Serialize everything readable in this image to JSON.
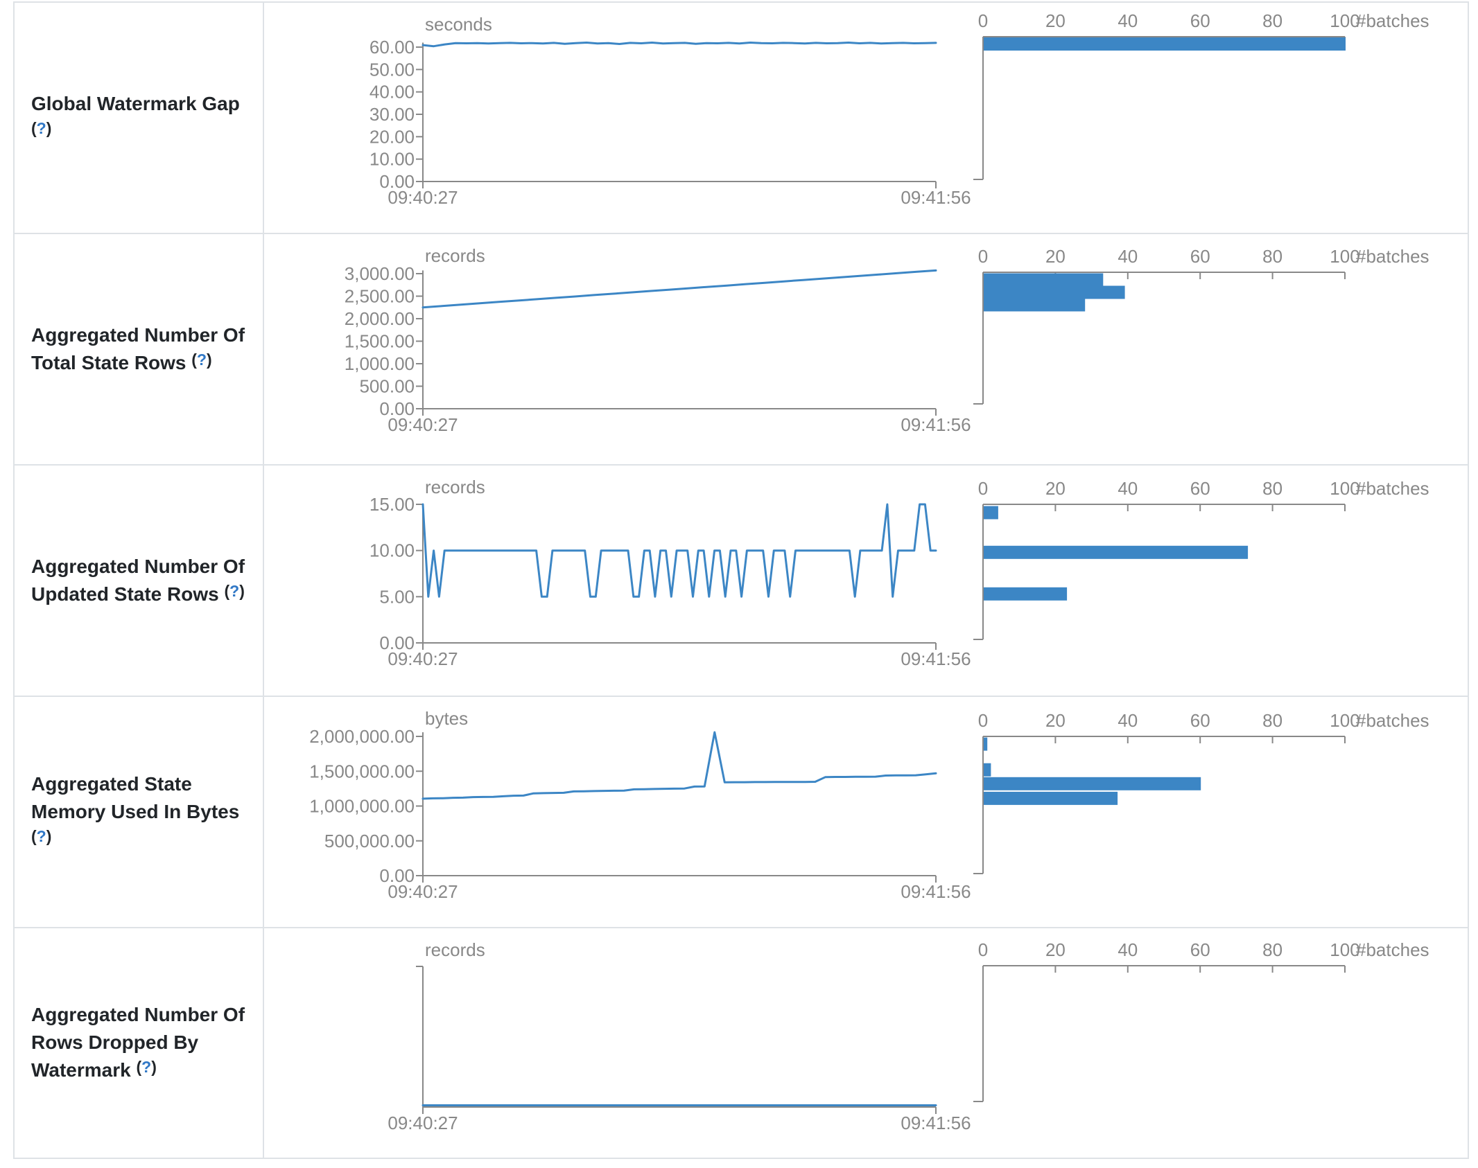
{
  "help": {
    "open": "(",
    "q": "?",
    "close": ")"
  },
  "time_axis": {
    "start": "09:40:27",
    "end": "09:41:56"
  },
  "histogram_axis": {
    "label": "#batches",
    "ticks": [
      [
        "0",
        0
      ],
      [
        "20",
        20
      ],
      [
        "40",
        40
      ],
      [
        "60",
        60
      ],
      [
        "80",
        80
      ],
      [
        "100",
        100
      ]
    ],
    "xlim": [
      0,
      100
    ]
  },
  "chart_data": [
    {
      "label": "Global Watermark Gap",
      "timeline": {
        "type": "line",
        "unit": "seconds",
        "xlabel_start": "09:40:27",
        "xlabel_end": "09:41:56",
        "ylim": [
          0,
          62
        ],
        "yticks": [
          [
            "60.00",
            60
          ],
          [
            "50.00",
            50
          ],
          [
            "40.00",
            40
          ],
          [
            "30.00",
            30
          ],
          [
            "20.00",
            20
          ],
          [
            "10.00",
            10
          ],
          [
            "0.00",
            0
          ]
        ],
        "values": [
          60.9,
          60.4,
          61.2,
          61.8,
          61.7,
          61.8,
          61.6,
          61.8,
          61.9,
          61.7,
          61.8,
          61.6,
          61.9,
          61.5,
          61.8,
          62.0,
          61.6,
          61.8,
          61.4,
          61.9,
          61.7,
          62.0,
          61.6,
          61.8,
          61.9,
          61.5,
          61.8,
          61.7,
          61.9,
          61.6,
          62.0,
          61.8,
          61.7,
          61.9,
          61.8,
          61.6,
          61.9,
          61.7,
          61.8,
          62.0,
          61.7,
          61.9,
          61.6,
          61.8,
          61.9,
          61.7,
          61.8,
          61.9
        ]
      },
      "histogram": {
        "type": "bar",
        "bars": [
          [
            61.4,
            100
          ]
        ]
      }
    },
    {
      "label": "Aggregated Number Of Total State Rows",
      "timeline": {
        "type": "line",
        "unit": "records",
        "xlabel_start": "09:40:27",
        "xlabel_end": "09:41:56",
        "ylim": [
          0,
          3100
        ],
        "yticks": [
          [
            "3,000.00",
            3000
          ],
          [
            "2,500.00",
            2500
          ],
          [
            "2,000.00",
            2000
          ],
          [
            "1,500.00",
            1500
          ],
          [
            "1,000.00",
            1000
          ],
          [
            "500.00",
            500
          ],
          [
            "0.00",
            0
          ]
        ],
        "values": [
          2250,
          2280,
          2311,
          2341,
          2372,
          2402,
          2432,
          2463,
          2493,
          2524,
          2554,
          2584,
          2615,
          2645,
          2676,
          2706,
          2736,
          2767,
          2797,
          2828,
          2858,
          2888,
          2919,
          2949,
          2980,
          3010,
          3041,
          3071
        ]
      },
      "histogram": {
        "type": "bar",
        "bars": [
          [
            2862,
            33
          ],
          [
            2585,
            39
          ],
          [
            2308,
            28
          ]
        ]
      }
    },
    {
      "label": "Aggregated Number Of Updated State Rows",
      "timeline": {
        "type": "line",
        "unit": "records",
        "xlabel_start": "09:40:27",
        "xlabel_end": "09:41:56",
        "ylim": [
          0,
          15
        ],
        "yticks": [
          [
            "15.00",
            15
          ],
          [
            "10.00",
            10
          ],
          [
            "5.00",
            5
          ],
          [
            "0.00",
            0
          ]
        ],
        "values": [
          15,
          5,
          10,
          5,
          10,
          10,
          10,
          10,
          10,
          10,
          10,
          10,
          10,
          10,
          10,
          10,
          10,
          10,
          10,
          10,
          10,
          10,
          5,
          5,
          10,
          10,
          10,
          10,
          10,
          10,
          10,
          5,
          5,
          10,
          10,
          10,
          10,
          10,
          10,
          5,
          5,
          10,
          10,
          5,
          10,
          10,
          5,
          10,
          10,
          10,
          5,
          10,
          10,
          5,
          10,
          10,
          5,
          10,
          10,
          5,
          10,
          10,
          10,
          10,
          5,
          10,
          10,
          10,
          5,
          10,
          10,
          10,
          10,
          10,
          10,
          10,
          10,
          10,
          10,
          10,
          5,
          10,
          10,
          10,
          10,
          10,
          15,
          5,
          10,
          10,
          10,
          10,
          15,
          15,
          10,
          10
        ]
      },
      "histogram": {
        "type": "bar",
        "bars": [
          [
            14.1,
            4
          ],
          [
            9.8,
            73
          ],
          [
            5.3,
            23
          ]
        ]
      }
    },
    {
      "label": "Aggregated State Memory Used In Bytes",
      "timeline": {
        "type": "line",
        "unit": "bytes",
        "xlabel_start": "09:40:27",
        "xlabel_end": "09:41:56",
        "ylim": [
          0,
          2100000
        ],
        "yticks": [
          [
            "2,000,000.00",
            2000000
          ],
          [
            "1,500,000.00",
            1500000
          ],
          [
            "1,000,000.00",
            1000000
          ],
          [
            "500,000.00",
            500000
          ],
          [
            "0.00",
            0
          ]
        ],
        "values": [
          1105000,
          1110000,
          1112000,
          1118000,
          1120000,
          1128000,
          1130000,
          1132000,
          1140000,
          1148000,
          1150000,
          1182000,
          1185000,
          1188000,
          1190000,
          1210000,
          1212000,
          1215000,
          1218000,
          1220000,
          1222000,
          1240000,
          1242000,
          1245000,
          1248000,
          1250000,
          1252000,
          1280000,
          1282000,
          2060000,
          1340000,
          1342000,
          1342000,
          1344000,
          1344000,
          1345000,
          1345000,
          1346000,
          1346000,
          1348000,
          1415000,
          1418000,
          1418000,
          1420000,
          1420000,
          1422000,
          1438000,
          1440000,
          1440000,
          1442000,
          1455000,
          1470000
        ]
      },
      "histogram": {
        "type": "bar",
        "bars": [
          [
            1890000,
            1
          ],
          [
            1520000,
            2
          ],
          [
            1320000,
            60
          ],
          [
            1110000,
            37
          ]
        ]
      }
    },
    {
      "label": "Aggregated Number Of Rows Dropped By Watermark",
      "timeline": {
        "type": "line",
        "unit": "records",
        "xlabel_start": "09:40:27",
        "xlabel_end": "09:41:56",
        "ylim": [
          0,
          0
        ],
        "yticks": [],
        "values": [
          0,
          0,
          0,
          0,
          0,
          0,
          0,
          0,
          0,
          0,
          0,
          0,
          0,
          0,
          0,
          0,
          0,
          0,
          0,
          0,
          0,
          0,
          0,
          0,
          0,
          0,
          0,
          0,
          0,
          0,
          0,
          0,
          0,
          0,
          0,
          0,
          0,
          0,
          0,
          0
        ]
      },
      "histogram": {
        "type": "bar",
        "bars": []
      }
    }
  ]
}
